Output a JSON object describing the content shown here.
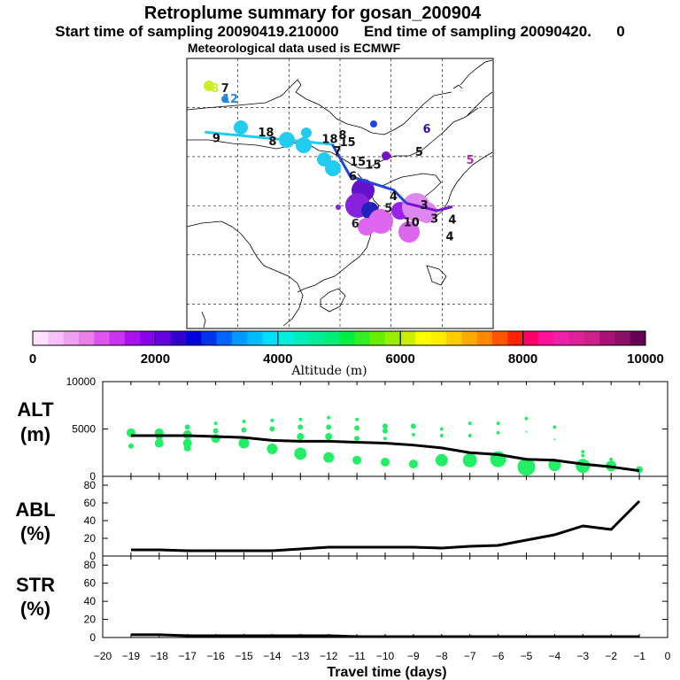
{
  "header": {
    "title": "Retroplume summary for gosan_200904",
    "subtitle": "Start time of sampling 20090419.210000      End time of sampling 20090420.      0",
    "met": "Meteorological data used is ECMWF"
  },
  "colors": {
    "scatter": "#22ee66",
    "line": "#000000",
    "track_cyan": "#22ccee",
    "track_blue": "#2244dd",
    "track_violet": "#7711cc",
    "coast": "#000000"
  },
  "chart_data": [
    {
      "type": "map",
      "title": "Retroplume trajectory map",
      "day_labels": [
        {
          "label": "8",
          "color": "#ccee22",
          "lon": 55.5,
          "lat": 63.8
        },
        {
          "label": "7",
          "color": "#222222",
          "lon": 57.5,
          "lat": 63.8
        },
        {
          "label": "12",
          "color": "#2288dd",
          "lon": 58.5,
          "lat": 61.6
        },
        {
          "label": "9",
          "color": "#111111",
          "lon": 55.8,
          "lat": 53.6
        },
        {
          "label": "18",
          "color": "#111111",
          "lon": 65.5,
          "lat": 54.8
        },
        {
          "label": "8",
          "color": "#111111",
          "lon": 66.8,
          "lat": 53.0
        },
        {
          "label": "18",
          "color": "#111111",
          "lon": 78.0,
          "lat": 53.4
        },
        {
          "label": "8",
          "color": "#111111",
          "lon": 80.5,
          "lat": 54.2
        },
        {
          "label": "15",
          "color": "#111111",
          "lon": 81.5,
          "lat": 52.8
        },
        {
          "label": "7",
          "color": "#111111",
          "lon": 79.5,
          "lat": 51.0
        },
        {
          "label": "15",
          "color": "#111111",
          "lon": 83.5,
          "lat": 48.8
        },
        {
          "label": "15",
          "color": "#111111",
          "lon": 86.5,
          "lat": 48.2
        },
        {
          "label": "6",
          "color": "#111111",
          "lon": 82.5,
          "lat": 45.8
        },
        {
          "label": "5",
          "color": "#111111",
          "lon": 95.5,
          "lat": 50.8
        },
        {
          "label": "6",
          "color": "#3311aa",
          "lon": 97.0,
          "lat": 55.5
        },
        {
          "label": "5",
          "color": "#aa33aa",
          "lon": 105.5,
          "lat": 49.2
        },
        {
          "label": "5",
          "color": "#222222",
          "lon": 89.5,
          "lat": 39.3
        },
        {
          "label": "6",
          "color": "#222222",
          "lon": 83.0,
          "lat": 36.2
        },
        {
          "label": "4",
          "color": "#111111",
          "lon": 90.5,
          "lat": 41.8
        },
        {
          "label": "3",
          "color": "#111111",
          "lon": 96.5,
          "lat": 40.0
        },
        {
          "label": "10",
          "color": "#111111",
          "lon": 94.0,
          "lat": 36.5
        },
        {
          "label": "3",
          "color": "#111111",
          "lon": 98.5,
          "lat": 37.2
        },
        {
          "label": "4",
          "color": "#111111",
          "lon": 101.5,
          "lat": 33.6
        },
        {
          "label": "4",
          "color": "#111111",
          "lon": 102.0,
          "lat": 37.0
        }
      ],
      "tracks": [
        {
          "color": "#22ccee",
          "points": [
            [
              53.5,
              55.0
            ],
            [
              78.5,
              52.5
            ]
          ]
        },
        {
          "color": "#2244dd",
          "points": [
            [
              78.5,
              52.5
            ],
            [
              82.0,
              46.0
            ],
            [
              90.5,
              43.2
            ],
            [
              93.0,
              40.5
            ]
          ]
        },
        {
          "color": "#7711cc",
          "points": [
            [
              93.0,
              40.5
            ],
            [
              99.0,
              39.0
            ],
            [
              102.0,
              39.8
            ]
          ]
        }
      ]
    },
    {
      "type": "colorbar",
      "xlabel": "Altitude (m)",
      "range": [
        0,
        10000
      ],
      "tick_labels": [
        "0",
        "2000",
        "4000",
        "6000",
        "8000",
        "10000"
      ],
      "colors": [
        "#ffe0ff",
        "#f8c0f8",
        "#f0a0f0",
        "#e880e8",
        "#dd55ee",
        "#cc33ee",
        "#aa11ee",
        "#8800ee",
        "#6600dd",
        "#3300cc",
        "#0000dd",
        "#0033ee",
        "#0066ff",
        "#0099ff",
        "#00bbff",
        "#00ddff",
        "#00eedd",
        "#00eebb",
        "#00ee99",
        "#00ee77",
        "#00ee44",
        "#33ee22",
        "#66ee00",
        "#99ee00",
        "#ccee00",
        "#ffff00",
        "#ffee00",
        "#ffcc00",
        "#ffaa00",
        "#ff8800",
        "#ff5500",
        "#ff2200",
        "#ff0066",
        "#ff1199",
        "#ee22aa",
        "#dd2299",
        "#cc2288",
        "#aa1177",
        "#881166",
        "#660055"
      ]
    },
    {
      "type": "scatter",
      "label": "ALT",
      "unit": "(m)",
      "ylim": [
        0,
        10000
      ],
      "ytick_labels": [
        "10000",
        "5000",
        "0"
      ],
      "xlim": [
        -20,
        0
      ],
      "series": [
        {
          "name": "median altitude",
          "type": "line",
          "x": [
            -19,
            -18,
            -17,
            -16,
            -15,
            -14,
            -13,
            -12,
            -11,
            -10,
            -9,
            -8,
            -7,
            -6,
            -5,
            -4,
            -3,
            -2,
            -1
          ],
          "values": [
            4300,
            4300,
            4300,
            4200,
            4100,
            3800,
            3700,
            3700,
            3600,
            3500,
            3300,
            3000,
            2500,
            2300,
            1800,
            1700,
            1300,
            1000,
            600
          ]
        },
        {
          "name": "particle clusters",
          "type": "scatter",
          "points": [
            [
              -19,
              4600,
              5
            ],
            [
              -19,
              3200,
              3
            ],
            [
              -18,
              4600,
              5
            ],
            [
              -18,
              4200,
              4
            ],
            [
              -18,
              3500,
              5
            ],
            [
              -17,
              5200,
              3
            ],
            [
              -17,
              4400,
              5
            ],
            [
              -17,
              3500,
              5
            ],
            [
              -17,
              3000,
              4
            ],
            [
              -16,
              5600,
              2
            ],
            [
              -16,
              4800,
              3
            ],
            [
              -16,
              4000,
              5
            ],
            [
              -15,
              5800,
              2
            ],
            [
              -15,
              4900,
              3
            ],
            [
              -15,
              3500,
              6
            ],
            [
              -14,
              5900,
              2
            ],
            [
              -14,
              5000,
              3
            ],
            [
              -14,
              2900,
              6
            ],
            [
              -13,
              6000,
              2
            ],
            [
              -13,
              5200,
              3
            ],
            [
              -13,
              4200,
              4
            ],
            [
              -13,
              2400,
              7
            ],
            [
              -12,
              6200,
              2
            ],
            [
              -12,
              5200,
              3
            ],
            [
              -12,
              4200,
              4
            ],
            [
              -12,
              2000,
              6
            ],
            [
              -11,
              6000,
              2
            ],
            [
              -11,
              5100,
              3
            ],
            [
              -11,
              4000,
              3
            ],
            [
              -11,
              1700,
              5
            ],
            [
              -10,
              5300,
              3
            ],
            [
              -10,
              4800,
              3
            ],
            [
              -10,
              4000,
              2
            ],
            [
              -10,
              1500,
              5
            ],
            [
              -9,
              5300,
              3
            ],
            [
              -9,
              4400,
              2
            ],
            [
              -9,
              1300,
              5
            ],
            [
              -8,
              5000,
              2
            ],
            [
              -8,
              4300,
              2
            ],
            [
              -8,
              1700,
              7
            ],
            [
              -7,
              5600,
              2
            ],
            [
              -7,
              4300,
              2
            ],
            [
              -7,
              1700,
              8
            ],
            [
              -6,
              5600,
              2
            ],
            [
              -6,
              4600,
              2
            ],
            [
              -6,
              1800,
              9
            ],
            [
              -5,
              6100,
              2
            ],
            [
              -5,
              4700,
              1
            ],
            [
              -5,
              1000,
              10
            ],
            [
              -4,
              5200,
              2
            ],
            [
              -4,
              3900,
              1
            ],
            [
              -4,
              1200,
              7
            ],
            [
              -3,
              2600,
              2
            ],
            [
              -3,
              2200,
              2
            ],
            [
              -3,
              1100,
              8
            ],
            [
              -2,
              1800,
              2
            ],
            [
              -2,
              1100,
              6
            ],
            [
              -1,
              700,
              4
            ]
          ]
        }
      ]
    },
    {
      "type": "line",
      "label": "ABL",
      "unit": "(%)",
      "ylim": [
        0,
        90
      ],
      "ytick_labels": [
        "80",
        "60",
        "40",
        "20",
        "0"
      ],
      "xlim": [
        -20,
        0
      ],
      "x": [
        -19,
        -18,
        -17,
        -16,
        -15,
        -14,
        -13,
        -12,
        -11,
        -10,
        -9,
        -8,
        -7,
        -6,
        -5,
        -4,
        -3,
        -2,
        -1
      ],
      "values": [
        7,
        7,
        6,
        6,
        6,
        6,
        8,
        10,
        10,
        10,
        10,
        9,
        11,
        12,
        18,
        24,
        34,
        30,
        62
      ]
    },
    {
      "type": "line",
      "label": "STR",
      "unit": "(%)",
      "ylim": [
        0,
        90
      ],
      "ytick_labels": [
        "80",
        "60",
        "40",
        "20",
        "0"
      ],
      "xlim": [
        -20,
        0
      ],
      "x": [
        -19,
        -18,
        -17,
        -16,
        -15,
        -14,
        -13,
        -12,
        -11,
        -10,
        -9,
        -8,
        -7,
        -6,
        -5,
        -4,
        -3,
        -2,
        -1
      ],
      "values": [
        3,
        3,
        2,
        2,
        2,
        2,
        2,
        2,
        1,
        1,
        1,
        1,
        1,
        1,
        1,
        1,
        1,
        1,
        1
      ],
      "xlabel": "Travel time (days)",
      "xtick_labels": [
        "−20",
        "−19",
        "−18",
        "−17",
        "−16",
        "−15",
        "−14",
        "−13",
        "−12",
        "−11",
        "−10",
        "−9",
        "−8",
        "−7",
        "−6",
        "−5",
        "−4",
        "−3",
        "−2",
        "−1",
        "0"
      ]
    }
  ]
}
